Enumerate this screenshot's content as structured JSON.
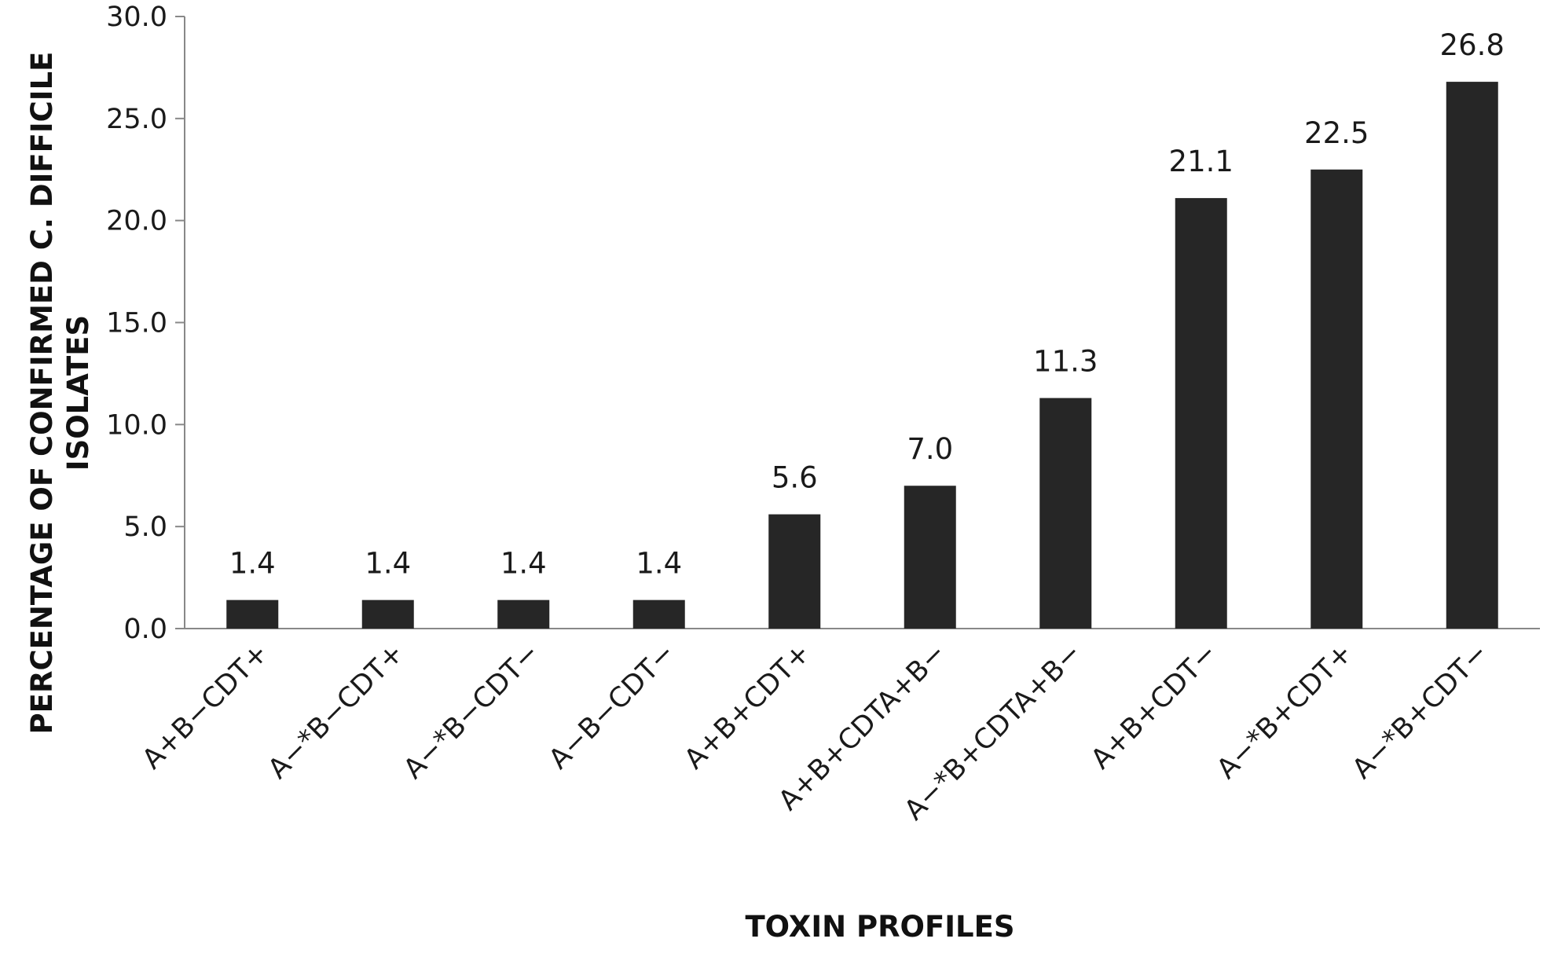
{
  "chart_data": {
    "type": "bar",
    "categories": [
      "A+B−CDT+",
      "A−*B−CDT+",
      "A−*B−CDT−",
      "A−B−CDT−",
      "A+B+CDT+",
      "A+B+CDTA+B−",
      "A−*B+CDTA+B−",
      "A+B+CDT−",
      "A−*B+CDT+",
      "A−*B+CDT−"
    ],
    "values": [
      1.4,
      1.4,
      1.4,
      1.4,
      5.6,
      7.0,
      11.3,
      21.1,
      22.5,
      26.8
    ],
    "value_labels": [
      "1.4",
      "1.4",
      "1.4",
      "1.4",
      "5.6",
      "7.0",
      "11.3",
      "21.1",
      "22.5",
      "26.8"
    ],
    "ylim": [
      0,
      30
    ],
    "yticks": [
      "0.0",
      "5.0",
      "10.0",
      "15.0",
      "20.0",
      "25.0",
      "30.0"
    ],
    "xlabel": "TOXIN PROFILES",
    "ylabel_lines": [
      "PERCENTAGE OF CONFIRMED C. DIFFICILE",
      "ISOLATES"
    ],
    "grid": false,
    "bar_color": "#262626",
    "axis_color": "#888888"
  }
}
